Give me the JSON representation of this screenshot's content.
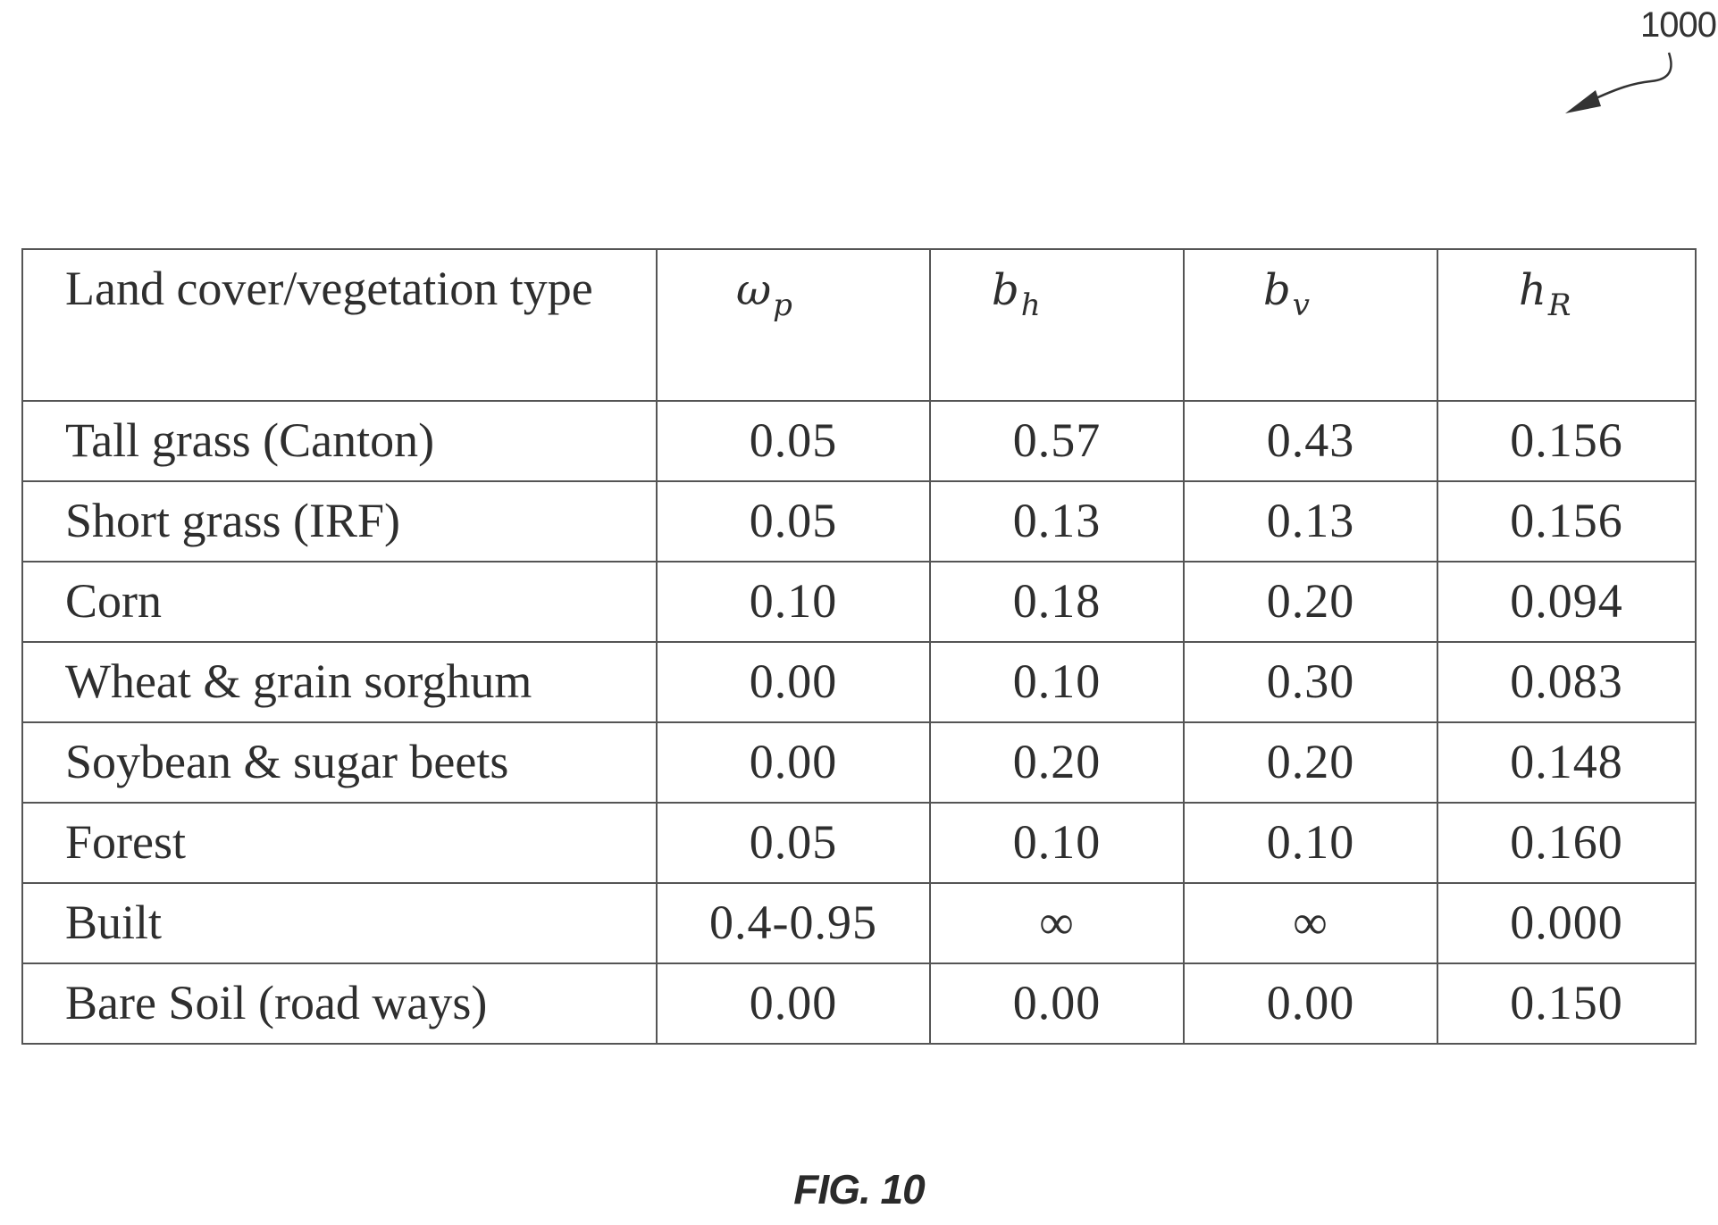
{
  "figure": {
    "reference_number": "1000",
    "caption": "FIG. 10"
  },
  "table": {
    "header": {
      "type_label": "Land cover/vegetation type",
      "wp": {
        "main": "ω",
        "sub": "p"
      },
      "bh": {
        "main": "b",
        "sub": "h"
      },
      "bv": {
        "main": "b",
        "sub": "v"
      },
      "hr": {
        "main": "h",
        "sub": "R"
      }
    },
    "rows": [
      {
        "type": "Tall grass (Canton)",
        "wp": "0.05",
        "bh": "0.57",
        "bv": "0.43",
        "hr": "0.156"
      },
      {
        "type": "Short grass (IRF)",
        "wp": "0.05",
        "bh": "0.13",
        "bv": "0.13",
        "hr": "0.156"
      },
      {
        "type": "Corn",
        "wp": "0.10",
        "bh": "0.18",
        "bv": "0.20",
        "hr": "0.094"
      },
      {
        "type": "Wheat & grain sorghum",
        "wp": "0.00",
        "bh": "0.10",
        "bv": "0.30",
        "hr": "0.083"
      },
      {
        "type": "Soybean & sugar beets",
        "wp": "0.00",
        "bh": "0.20",
        "bv": "0.20",
        "hr": "0.148"
      },
      {
        "type": "Forest",
        "wp": "0.05",
        "bh": "0.10",
        "bv": "0.10",
        "hr": "0.160"
      },
      {
        "type": "Built",
        "wp": "0.4-0.95",
        "bh": "∞",
        "bv": "∞",
        "hr": "0.000"
      },
      {
        "type": "Bare Soil (road ways)",
        "wp": "0.00",
        "bh": "0.00",
        "bv": "0.00",
        "hr": "0.150"
      }
    ]
  }
}
